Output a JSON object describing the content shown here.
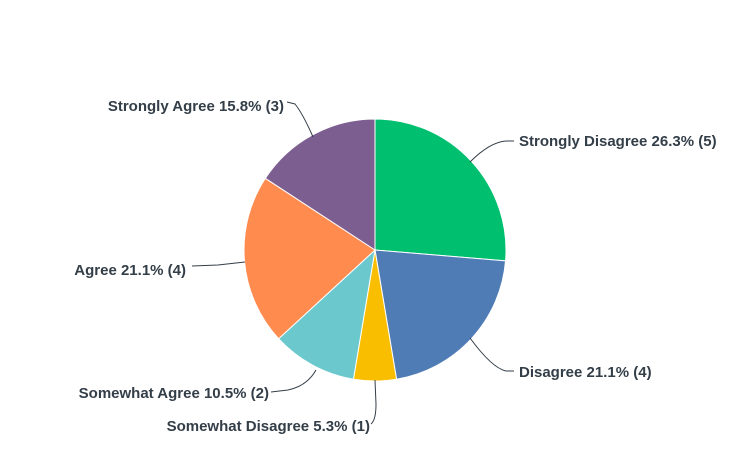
{
  "chart_data": {
    "type": "pie",
    "slices": [
      {
        "label": "Strongly Disagree",
        "percent": "26.3%",
        "count": 5,
        "text": "Strongly Disagree 26.3% (5)",
        "color": "#00bf6f"
      },
      {
        "label": "Disagree",
        "percent": "21.1%",
        "count": 4,
        "text": "Disagree 21.1% (4)",
        "color": "#507cb6"
      },
      {
        "label": "Somewhat Disagree",
        "percent": "5.3%",
        "count": 1,
        "text": "Somewhat Disagree 5.3% (1)",
        "color": "#f9be00"
      },
      {
        "label": "Somewhat Agree",
        "percent": "10.5%",
        "count": 2,
        "text": "Somewhat Agree 10.5% (2)",
        "color": "#6bc8cd"
      },
      {
        "label": "Agree",
        "percent": "21.1%",
        "count": 4,
        "text": "Agree 21.1% (4)",
        "color": "#ff8b4f"
      },
      {
        "label": "Strongly Agree",
        "percent": "15.8%",
        "count": 3,
        "text": "Strongly Agree 15.8% (3)",
        "color": "#7d5e90"
      }
    ]
  }
}
